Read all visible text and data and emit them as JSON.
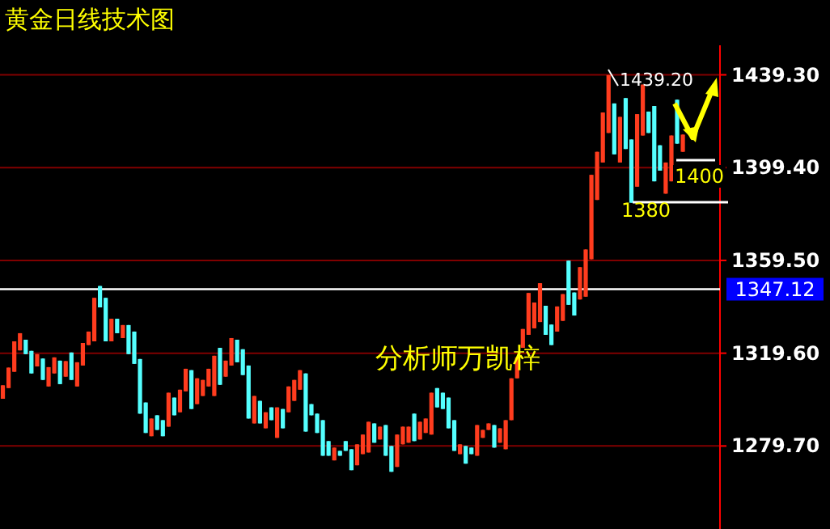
{
  "chart_data": {
    "type": "candlestick",
    "title": "黄金日线技术图",
    "categories": [
      null,
      null,
      null,
      null,
      null,
      null,
      null,
      null,
      null,
      null,
      null,
      null,
      null,
      null,
      null,
      null,
      null,
      null,
      null,
      null,
      null,
      null,
      null,
      null,
      null,
      null,
      null,
      null,
      null,
      null,
      null,
      null,
      null,
      null,
      null,
      null,
      null,
      null,
      null,
      null,
      null,
      null,
      null,
      null,
      null,
      null,
      null,
      null,
      null,
      null,
      null,
      null,
      null,
      null,
      null,
      null,
      null,
      null,
      null,
      null,
      null,
      null,
      null,
      null,
      null,
      null,
      null,
      null,
      null,
      null,
      null,
      null,
      null,
      null,
      null,
      null,
      null,
      null,
      null,
      null,
      null,
      null,
      null,
      null,
      null,
      null,
      null,
      null,
      null,
      null,
      null,
      null,
      null,
      null,
      null,
      null,
      null,
      null,
      null,
      null,
      null,
      null,
      null,
      null,
      null,
      null,
      null,
      null,
      null,
      null,
      null,
      null,
      null,
      null,
      null,
      null,
      null,
      null,
      null,
      null,
      null,
      null,
      null,
      null,
      null,
      null
    ],
    "ohlc": [
      [
        1300.0,
        1305.8,
        1300.0,
        1305.8
      ],
      [
        1304.6,
        1313.4,
        1304.6,
        1313.4
      ],
      [
        1311.6,
        1324.7,
        1311.6,
        1324.7
      ],
      [
        1320.8,
        1328.2,
        1320.8,
        1328.2
      ],
      [
        1325.4,
        1325.4,
        1319.2,
        1319.2
      ],
      [
        1320.6,
        1320.6,
        1310.9,
        1310.9
      ],
      [
        1313.9,
        1319.2,
        1313.9,
        1319.2
      ],
      [
        1317.3,
        1317.3,
        1308.1,
        1308.1
      ],
      [
        1305.3,
        1313.6,
        1305.3,
        1313.6
      ],
      [
        1310.9,
        1317.8,
        1310.9,
        1317.8
      ],
      [
        1316.4,
        1316.4,
        1306.3,
        1306.3
      ],
      [
        1309.5,
        1316.2,
        1309.5,
        1316.2
      ],
      [
        1319.9,
        1319.9,
        1308.1,
        1308.1
      ],
      [
        1305.3,
        1315.7,
        1305.3,
        1315.7
      ],
      [
        1314.3,
        1324.0,
        1314.3,
        1324.0
      ],
      [
        1323.1,
        1328.9,
        1323.1,
        1328.9
      ],
      [
        1324.7,
        1343.4,
        1324.7,
        1343.4
      ],
      [
        1348.5,
        1348.5,
        1339.3,
        1339.3
      ],
      [
        1343.4,
        1343.4,
        1324.7,
        1324.7
      ],
      [
        1324.7,
        1334.4,
        1324.7,
        1334.4
      ],
      [
        1334.4,
        1334.4,
        1328.2,
        1328.2
      ],
      [
        1326.1,
        1331.7,
        1326.1,
        1331.7
      ],
      [
        1331.7,
        1331.7,
        1319.2,
        1319.2
      ],
      [
        1328.9,
        1328.9,
        1315.0,
        1315.0
      ],
      [
        1317.1,
        1317.1,
        1293.6,
        1293.6
      ],
      [
        1298.4,
        1298.4,
        1285.3,
        1285.3
      ],
      [
        1283.9,
        1291.5,
        1283.9,
        1291.5
      ],
      [
        1292.9,
        1292.9,
        1286.6,
        1286.6
      ],
      [
        1290.8,
        1290.8,
        1283.9,
        1283.9
      ],
      [
        1288.0,
        1302.6,
        1288.0,
        1302.6
      ],
      [
        1300.5,
        1300.5,
        1292.9,
        1292.9
      ],
      [
        1294.2,
        1303.9,
        1294.2,
        1303.9
      ],
      [
        1303.2,
        1312.9,
        1303.2,
        1312.9
      ],
      [
        1312.3,
        1312.3,
        1295.6,
        1295.6
      ],
      [
        1297.7,
        1308.8,
        1297.7,
        1308.8
      ],
      [
        1301.2,
        1308.1,
        1301.2,
        1308.1
      ],
      [
        1305.3,
        1312.9,
        1305.3,
        1312.9
      ],
      [
        1301.2,
        1318.5,
        1301.2,
        1318.5
      ],
      [
        1321.9,
        1321.9,
        1306.0,
        1306.0
      ],
      [
        1309.5,
        1316.4,
        1309.5,
        1316.4
      ],
      [
        1314.3,
        1326.1,
        1314.3,
        1326.1
      ],
      [
        1325.4,
        1325.4,
        1315.7,
        1315.7
      ],
      [
        1321.3,
        1321.3,
        1310.2,
        1310.2
      ],
      [
        1314.3,
        1314.3,
        1291.5,
        1291.5
      ],
      [
        1289.4,
        1301.2,
        1289.4,
        1301.2
      ],
      [
        1299.1,
        1299.1,
        1289.4,
        1289.4
      ],
      [
        1287.3,
        1294.2,
        1287.3,
        1294.2
      ],
      [
        1296.3,
        1296.3,
        1290.8,
        1290.8
      ],
      [
        1283.2,
        1296.3,
        1283.2,
        1296.3
      ],
      [
        1295.6,
        1295.6,
        1287.3,
        1287.3
      ],
      [
        1294.2,
        1305.3,
        1294.2,
        1305.3
      ],
      [
        1299.1,
        1308.1,
        1299.1,
        1308.1
      ],
      [
        1303.9,
        1312.3,
        1303.9,
        1312.3
      ],
      [
        1310.9,
        1310.9,
        1285.9,
        1285.9
      ],
      [
        1297.7,
        1297.7,
        1292.9,
        1292.9
      ],
      [
        1293.6,
        1293.6,
        1285.3,
        1285.3
      ],
      [
        1290.8,
        1290.8,
        1275.5,
        1275.5
      ],
      [
        1281.8,
        1281.8,
        1275.5,
        1275.5
      ],
      [
        1273.5,
        1279.0,
        1273.5,
        1279.0
      ],
      [
        1277.6,
        1277.6,
        1275.5,
        1275.5
      ],
      [
        1281.8,
        1281.8,
        1277.6,
        1277.6
      ],
      [
        1278.3,
        1278.3,
        1269.3,
        1269.3
      ],
      [
        1271.4,
        1280.4,
        1271.4,
        1280.4
      ],
      [
        1276.2,
        1284.6,
        1276.2,
        1284.6
      ],
      [
        1276.9,
        1290.1,
        1276.9,
        1290.1
      ],
      [
        1289.4,
        1289.4,
        1281.1,
        1281.1
      ],
      [
        1282.5,
        1288.0,
        1282.5,
        1288.0
      ],
      [
        1288.7,
        1288.7,
        1275.5,
        1275.5
      ],
      [
        1279.7,
        1279.7,
        1268.6,
        1268.6
      ],
      [
        1270.7,
        1284.6,
        1270.7,
        1284.6
      ],
      [
        1280.4,
        1288.0,
        1280.4,
        1288.0
      ],
      [
        1281.1,
        1288.0,
        1281.1,
        1288.0
      ],
      [
        1293.6,
        1293.6,
        1281.8,
        1281.8
      ],
      [
        1282.5,
        1290.1,
        1282.5,
        1290.1
      ],
      [
        1285.3,
        1291.5,
        1285.3,
        1291.5
      ],
      [
        1284.6,
        1302.6,
        1284.6,
        1302.6
      ],
      [
        1304.6,
        1304.6,
        1296.3,
        1296.3
      ],
      [
        1302.6,
        1302.6,
        1295.6,
        1295.6
      ],
      [
        1300.5,
        1300.5,
        1287.3,
        1287.3
      ],
      [
        1290.8,
        1290.8,
        1277.6,
        1277.6
      ],
      [
        1276.2,
        1280.4,
        1276.2,
        1280.4
      ],
      [
        1279.7,
        1279.7,
        1272.1,
        1272.1
      ],
      [
        1279.0,
        1279.0,
        1276.2,
        1276.2
      ],
      [
        1275.5,
        1288.7,
        1275.5,
        1288.7
      ],
      [
        1283.2,
        1286.6,
        1283.2,
        1286.6
      ],
      [
        1286.6,
        1289.4,
        1286.6,
        1289.4
      ],
      [
        1288.7,
        1288.7,
        1279.0,
        1279.0
      ],
      [
        1281.1,
        1287.3,
        1281.1,
        1287.3
      ],
      [
        1278.3,
        1290.8,
        1278.3,
        1290.8
      ],
      [
        1290.8,
        1308.8,
        1290.8,
        1308.8
      ],
      [
        1308.8,
        1317.8,
        1308.8,
        1317.8
      ],
      [
        1321.9,
        1330.0,
        1321.9,
        1330.0
      ],
      [
        1327.5,
        1345.5,
        1327.5,
        1345.5
      ],
      [
        1330.3,
        1341.4,
        1330.3,
        1341.4
      ],
      [
        1333.0,
        1349.7,
        1333.0,
        1349.7
      ],
      [
        1340.0,
        1340.0,
        1327.5,
        1327.5
      ],
      [
        1331.9,
        1331.9,
        1323.1,
        1323.1
      ],
      [
        1328.9,
        1339.7,
        1328.9,
        1339.7
      ],
      [
        1333.5,
        1345.0,
        1333.5,
        1345.0
      ],
      [
        1359.4,
        1359.4,
        1340.4,
        1340.4
      ],
      [
        1345.7,
        1345.7,
        1335.8,
        1335.8
      ],
      [
        1342.7,
        1356.6,
        1342.7,
        1356.6
      ],
      [
        1343.9,
        1364.2,
        1343.9,
        1364.2
      ],
      [
        1360.0,
        1396.3,
        1360.0,
        1396.3
      ],
      [
        1385.5,
        1406.2,
        1385.5,
        1406.2
      ],
      [
        1401.6,
        1423.1,
        1401.6,
        1423.1
      ],
      [
        1414.3,
        1439.2,
        1414.3,
        1439.2
      ],
      [
        1427.0,
        1427.0,
        1405.1,
        1405.1
      ],
      [
        1401.6,
        1421.2,
        1401.6,
        1421.2
      ],
      [
        1429.3,
        1429.3,
        1407.4,
        1407.4
      ],
      [
        1411.5,
        1411.5,
        1384.3,
        1384.3
      ],
      [
        1391.2,
        1422.4,
        1391.2,
        1422.4
      ],
      [
        1413.2,
        1435.1,
        1413.2,
        1435.1
      ],
      [
        1423.5,
        1423.5,
        1414.3,
        1414.3
      ],
      [
        1425.9,
        1425.9,
        1393.5,
        1393.5
      ],
      [
        1409.0,
        1409.0,
        1398.1,
        1398.1
      ],
      [
        1388.2,
        1401.6,
        1388.2,
        1401.6
      ],
      [
        1393.5,
        1413.2,
        1393.5,
        1413.2
      ],
      [
        1428.6,
        1428.6,
        1409.7,
        1409.7
      ],
      [
        1406.2,
        1413.6,
        1406.2,
        1413.6
      ],
      null,
      null,
      null,
      null,
      null,
      null
    ],
    "colors": [
      "#ff3c1e",
      "#ff3c1e",
      "#ff3c1e",
      "#ff3c1e",
      "#54ffff",
      "#54ffff",
      "#ff3c1e",
      "#54ffff",
      "#ff3c1e",
      "#ff3c1e",
      "#54ffff",
      "#ff3c1e",
      "#54ffff",
      "#ff3c1e",
      "#ff3c1e",
      "#ff3c1e",
      "#ff3c1e",
      "#54ffff",
      "#54ffff",
      "#ff3c1e",
      "#54ffff",
      "#ff3c1e",
      "#54ffff",
      "#54ffff",
      "#54ffff",
      "#54ffff",
      "#ff3c1e",
      "#54ffff",
      "#54ffff",
      "#ff3c1e",
      "#54ffff",
      "#ff3c1e",
      "#ff3c1e",
      "#54ffff",
      "#ff3c1e",
      "#ff3c1e",
      "#ff3c1e",
      "#ff3c1e",
      "#54ffff",
      "#ff3c1e",
      "#ff3c1e",
      "#54ffff",
      "#54ffff",
      "#54ffff",
      "#ff3c1e",
      "#54ffff",
      "#ff3c1e",
      "#54ffff",
      "#ff3c1e",
      "#54ffff",
      "#ff3c1e",
      "#ff3c1e",
      "#ff3c1e",
      "#54ffff",
      "#54ffff",
      "#54ffff",
      "#54ffff",
      "#54ffff",
      "#ff3c1e",
      "#54ffff",
      "#54ffff",
      "#54ffff",
      "#ff3c1e",
      "#ff3c1e",
      "#ff3c1e",
      "#54ffff",
      "#ff3c1e",
      "#54ffff",
      "#54ffff",
      "#ff3c1e",
      "#ff3c1e",
      "#ff3c1e",
      "#54ffff",
      "#ff3c1e",
      "#ff3c1e",
      "#ff3c1e",
      "#54ffff",
      "#54ffff",
      "#54ffff",
      "#54ffff",
      "#ff3c1e",
      "#54ffff",
      "#54ffff",
      "#ff3c1e",
      "#ff3c1e",
      "#ff3c1e",
      "#54ffff",
      "#ff3c1e",
      "#ff3c1e",
      "#ff3c1e",
      "#ff3c1e",
      "#ff3c1e",
      "#ff3c1e",
      "#ff3c1e",
      "#ff3c1e",
      "#54ffff",
      "#54ffff",
      "#ff3c1e",
      "#ff3c1e",
      "#54ffff",
      "#54ffff",
      "#ff3c1e",
      "#ff3c1e",
      "#ff3c1e",
      "#ff3c1e",
      "#ff3c1e",
      "#ff3c1e",
      "#54ffff",
      "#ff3c1e",
      "#54ffff",
      "#54ffff",
      "#ff3c1e",
      "#ff3c1e",
      "#54ffff",
      "#54ffff",
      "#54ffff",
      "#ff3c1e",
      "#ff3c1e",
      "#54ffff",
      "#ff3c1e",
      null,
      null,
      null,
      null,
      null,
      null
    ],
    "ylim": [
      1244,
      1452
    ],
    "yticks": [
      {
        "value": 1279.7,
        "label": "1279.70"
      },
      {
        "value": 1319.6,
        "label": "1319.60"
      },
      {
        "value": 1359.5,
        "label": "1359.50"
      },
      {
        "value": 1399.4,
        "label": "1399.40"
      },
      {
        "value": 1439.3,
        "label": "1439.30"
      }
    ],
    "grid": "y",
    "ref_lines": [
      {
        "axis": "y",
        "value": 1347.12,
        "label": "1347.12",
        "color": "#ffffff"
      }
    ],
    "annotations": [
      "分析师万凯梓",
      "1439.20",
      "1400",
      "1380"
    ]
  }
}
